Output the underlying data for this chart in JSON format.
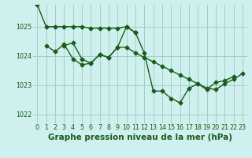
{
  "title": "Graphe pression niveau de la mer (hPa)",
  "bg_color": "#cff0ee",
  "grid_color": "#99ccbb",
  "line_color": "#1a5c1a",
  "ylim": [
    1021.7,
    1025.75
  ],
  "yticks": [
    1022,
    1023,
    1024,
    1025
  ],
  "series": [
    {
      "points": [
        [
          0,
          1025.75
        ],
        [
          1,
          1025.0
        ],
        [
          2,
          1025.0
        ],
        [
          3,
          1025.0
        ],
        [
          4,
          1025.0
        ],
        [
          5,
          1025.0
        ],
        [
          6,
          1024.95
        ],
        [
          7,
          1024.95
        ],
        [
          8,
          1024.95
        ],
        [
          9,
          1024.95
        ],
        [
          10,
          1025.0
        ],
        [
          11,
          1024.8
        ],
        [
          12,
          null
        ],
        [
          13,
          null
        ],
        [
          14,
          null
        ],
        [
          15,
          null
        ],
        [
          16,
          null
        ],
        [
          17,
          null
        ],
        [
          18,
          null
        ],
        [
          19,
          null
        ],
        [
          20,
          null
        ],
        [
          21,
          null
        ],
        [
          22,
          null
        ],
        [
          23,
          null
        ]
      ]
    },
    {
      "points": [
        [
          0,
          null
        ],
        [
          1,
          null
        ],
        [
          2,
          null
        ],
        [
          3,
          1024.35
        ],
        [
          4,
          1024.45
        ],
        [
          5,
          1023.9
        ],
        [
          6,
          1023.75
        ],
        [
          7,
          1024.05
        ],
        [
          8,
          1023.95
        ],
        [
          9,
          1024.3
        ],
        [
          10,
          1025.0
        ],
        [
          11,
          1024.8
        ],
        [
          12,
          1024.1
        ],
        [
          13,
          1022.8
        ],
        [
          14,
          1022.8
        ],
        [
          15,
          1022.55
        ],
        [
          16,
          1022.4
        ],
        [
          17,
          1022.9
        ],
        [
          18,
          1023.05
        ],
        [
          19,
          1022.85
        ],
        [
          20,
          1023.1
        ],
        [
          21,
          1023.15
        ],
        [
          22,
          1023.3
        ],
        [
          23,
          null
        ]
      ]
    },
    {
      "points": [
        [
          0,
          null
        ],
        [
          1,
          1024.35
        ],
        [
          2,
          1024.15
        ],
        [
          3,
          1024.4
        ],
        [
          4,
          1023.9
        ],
        [
          5,
          1023.7
        ],
        [
          6,
          1023.75
        ],
        [
          7,
          1024.05
        ],
        [
          8,
          1023.95
        ],
        [
          9,
          1024.3
        ],
        [
          10,
          1024.3
        ],
        [
          11,
          1024.1
        ],
        [
          12,
          1023.95
        ],
        [
          13,
          1023.8
        ],
        [
          14,
          1023.65
        ],
        [
          15,
          1023.5
        ],
        [
          16,
          1023.35
        ],
        [
          17,
          1023.2
        ],
        [
          18,
          1023.05
        ],
        [
          19,
          1022.9
        ],
        [
          20,
          1022.85
        ],
        [
          21,
          1023.05
        ],
        [
          22,
          1023.2
        ],
        [
          23,
          1023.4
        ]
      ]
    }
  ],
  "marker_size": 2.5,
  "linewidth": 1.0,
  "title_fontsize": 7.5,
  "tick_fontsize": 5.8,
  "label_color": "#1a5c1a"
}
